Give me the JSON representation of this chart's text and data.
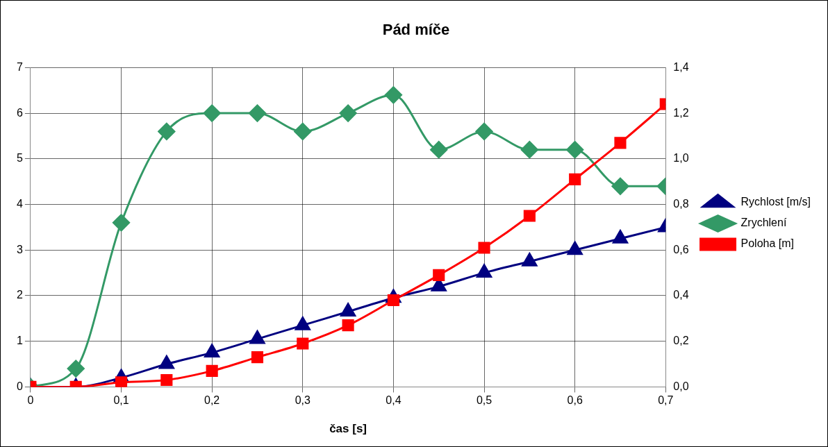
{
  "chart_data": {
    "type": "line",
    "title": "Pád míče",
    "xlabel": "čas [s]",
    "x": [
      0,
      0.05,
      0.1,
      0.15,
      0.2,
      0.25,
      0.3,
      0.35,
      0.4,
      0.45,
      0.5,
      0.55,
      0.6,
      0.65,
      0.7
    ],
    "series": [
      {
        "name": "Rychlost [m/s]",
        "color": "#000080",
        "marker": "triangle",
        "values": [
          0,
          0,
          0.2,
          0.5,
          0.75,
          1.05,
          1.35,
          1.65,
          1.95,
          2.2,
          2.5,
          2.75,
          3.0,
          3.25,
          3.5
        ]
      },
      {
        "name": "Zrychlení",
        "color": "#339966",
        "marker": "diamond",
        "values": [
          0,
          0.4,
          3.6,
          5.6,
          6.0,
          6.0,
          5.6,
          6.0,
          6.4,
          5.2,
          5.6,
          5.2,
          5.2,
          4.4,
          4.4
        ]
      },
      {
        "name": "Poloha [m]",
        "color": "#ff0000",
        "marker": "square",
        "axis": "y2",
        "values": [
          0,
          0,
          0.02,
          0.03,
          0.07,
          0.13,
          0.19,
          0.27,
          0.38,
          0.49,
          0.61,
          0.75,
          0.91,
          1.07,
          1.24
        ]
      }
    ],
    "xlim": [
      0,
      0.7
    ],
    "xticks": [
      0,
      {
        "value": 0.1,
        "label": "0,1"
      },
      {
        "value": 0.2,
        "label": "0,2"
      },
      {
        "value": 0.3,
        "label": "0,3"
      },
      {
        "value": 0.4,
        "label": "0,4"
      },
      {
        "value": 0.5,
        "label": "0,5"
      },
      {
        "value": 0.6,
        "label": "0,6"
      },
      {
        "value": 0.7,
        "label": "0,7"
      }
    ],
    "ylim": [
      0,
      7
    ],
    "yticks": [
      0,
      1,
      2,
      3,
      4,
      5,
      6,
      7
    ],
    "y2lim": [
      0,
      1.4
    ],
    "y2ticks": [
      {
        "value": 0,
        "label": "0,0"
      },
      {
        "value": 0.2,
        "label": "0,2"
      },
      {
        "value": 0.4,
        "label": "0,4"
      },
      {
        "value": 0.6,
        "label": "0,6"
      },
      {
        "value": 0.8,
        "label": "0,8"
      },
      {
        "value": 1.0,
        "label": "1,0"
      },
      {
        "value": 1.2,
        "label": "1,2"
      },
      {
        "value": 1.4,
        "label": "1,4"
      }
    ],
    "grid": true,
    "legend": "right"
  }
}
